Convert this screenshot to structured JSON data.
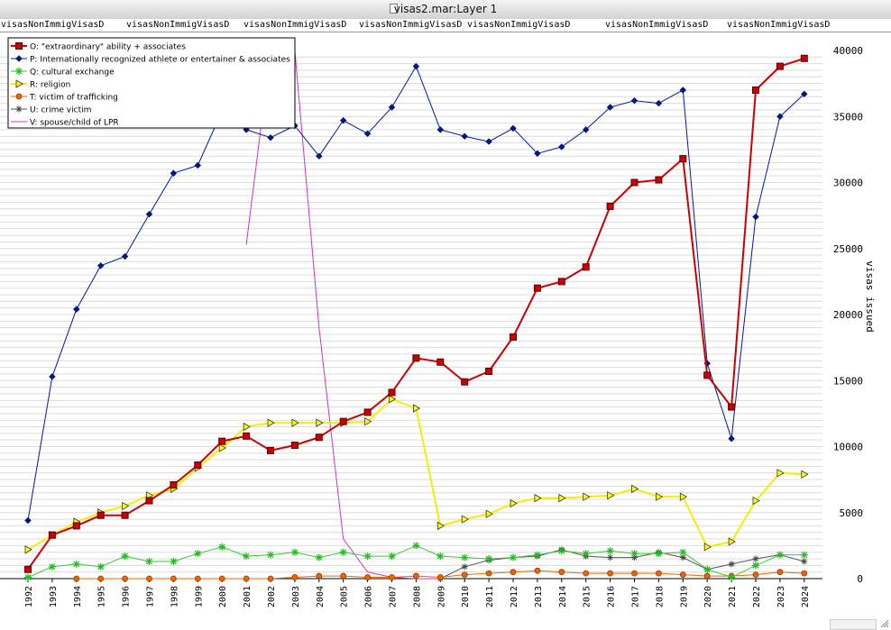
{
  "window": {
    "title": "visas2.mar:Layer 1"
  },
  "column_headers": [
    "visasNonImmigVisasD",
    "visasNonImmigVisasD",
    "visasNonImmigVisasD",
    "visasNonImmigVisasD",
    "visasNonImmigVisasD",
    "visasNonImmigVisasD",
    "visasNonImmigVisasD"
  ],
  "chart_data": {
    "type": "line",
    "title": "",
    "xlabel": "",
    "ylabel": "visas issued",
    "ylim": [
      0,
      40000
    ],
    "y_ticks": [
      0,
      5000,
      10000,
      15000,
      20000,
      25000,
      30000,
      35000,
      40000
    ],
    "grid": "horizontal",
    "legend_position": "top-left",
    "categories": [
      "1992",
      "1993",
      "1994",
      "1995",
      "1996",
      "1997",
      "1998",
      "1999",
      "2000",
      "2001",
      "2002",
      "2003",
      "2004",
      "2005",
      "2006",
      "2007",
      "2008",
      "2009",
      "2010",
      "2011",
      "2012",
      "2013",
      "2014",
      "2015",
      "2016",
      "2017",
      "2018",
      "2019",
      "2020",
      "2021",
      "2022",
      "2023",
      "2024"
    ],
    "series": [
      {
        "name": "O: \"extraordinary\" ability + associates",
        "color": "#cc0000",
        "marker": "square",
        "values": [
          700,
          3300,
          4000,
          4800,
          4800,
          5900,
          7100,
          8600,
          10400,
          10800,
          9700,
          10100,
          10700,
          11900,
          12600,
          14100,
          16700,
          16400,
          14900,
          15700,
          18300,
          22000,
          22500,
          23600,
          28200,
          30000,
          30200,
          31800,
          15400,
          13000,
          37000,
          38800,
          39400
        ]
      },
      {
        "name": "P: Internationally recognized athlete or entertainer & associates",
        "color": "#00189e",
        "marker": "diamond",
        "values": [
          4400,
          15300,
          20400,
          23700,
          24400,
          27600,
          30700,
          31300,
          35400,
          34000,
          33400,
          34300,
          32000,
          34700,
          33700,
          35700,
          38800,
          34000,
          33500,
          33100,
          34100,
          32200,
          32700,
          34000,
          35700,
          36200,
          36000,
          37000,
          16300,
          10600,
          27400,
          35000,
          36700
        ]
      },
      {
        "name": "Q: cultural exchange",
        "color": "#33cc33",
        "marker": "asterisk",
        "values": [
          100,
          900,
          1100,
          900,
          1700,
          1300,
          1300,
          1900,
          2400,
          1700,
          1800,
          2000,
          1600,
          2000,
          1700,
          1700,
          2500,
          1700,
          1600,
          1500,
          1600,
          1800,
          2100,
          1900,
          2100,
          1900,
          1900,
          2000,
          700,
          100,
          1000,
          1800,
          1800
        ]
      },
      {
        "name": "R: religion",
        "color": "#f5ee00",
        "marker": "triangle",
        "values": [
          2200,
          3300,
          4300,
          5000,
          5500,
          6300,
          6800,
          8400,
          9900,
          11500,
          11800,
          11800,
          11800,
          11800,
          11900,
          13600,
          12900,
          4000,
          4500,
          4900,
          5700,
          6100,
          6100,
          6200,
          6300,
          6800,
          6200,
          6200,
          2400,
          2800,
          5900,
          8000,
          7900
        ]
      },
      {
        "name": "T: victim of trafficking",
        "color": "#ee6600",
        "marker": "circle",
        "values": [
          null,
          null,
          0,
          0,
          0,
          0,
          0,
          0,
          0,
          0,
          0,
          100,
          200,
          200,
          100,
          100,
          200,
          100,
          300,
          400,
          500,
          600,
          500,
          400,
          400,
          400,
          400,
          300,
          200,
          200,
          300,
          500,
          400
        ]
      },
      {
        "name": "U: crime victim",
        "color": "#555555",
        "marker": "star",
        "values": [
          null,
          null,
          null,
          null,
          null,
          null,
          null,
          null,
          null,
          null,
          null,
          null,
          null,
          null,
          null,
          null,
          null,
          0,
          900,
          1400,
          1600,
          1700,
          2200,
          1700,
          1600,
          1600,
          2000,
          1600,
          700,
          1100,
          1500,
          1800,
          1300
        ]
      },
      {
        "name": "V: spouse/child of LPR",
        "color": "#cc33cc",
        "marker": "none",
        "values": [
          null,
          null,
          null,
          null,
          null,
          null,
          null,
          null,
          null,
          25300,
          40000,
          40000,
          19000,
          3000,
          500,
          100,
          0,
          0,
          null,
          null,
          null,
          null,
          null,
          null,
          null,
          null,
          null,
          null,
          null,
          null,
          null,
          null,
          null
        ]
      }
    ]
  }
}
